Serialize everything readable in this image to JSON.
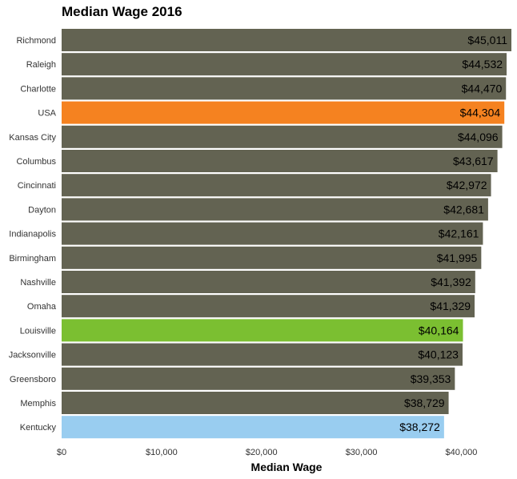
{
  "chart_data": {
    "type": "bar",
    "orientation": "horizontal",
    "title": "Median Wage 2016",
    "xlabel": "Median Wage",
    "ylabel": "",
    "xlim": [
      0,
      45011
    ],
    "xticks": [
      0,
      10000,
      20000,
      30000,
      40000
    ],
    "xtick_labels": [
      "$0",
      "$10,000",
      "$20,000",
      "$30,000",
      "$40,000"
    ],
    "grid": false,
    "legend": "none",
    "categories": [
      "Richmond",
      "Raleigh",
      "Charlotte",
      "USA",
      "Kansas City",
      "Columbus",
      "Cincinnati",
      "Dayton",
      "Indianapolis",
      "Birmingham",
      "Nashville",
      "Omaha",
      "Louisville",
      "Jacksonville",
      "Greensboro",
      "Memphis",
      "Kentucky"
    ],
    "values": [
      45011,
      44532,
      44470,
      44304,
      44096,
      43617,
      42972,
      42681,
      42161,
      41995,
      41392,
      41329,
      40164,
      40123,
      39353,
      38729,
      38272
    ],
    "data_labels": [
      "$45,011",
      "$44,532",
      "$44,470",
      "$44,304",
      "$44,096",
      "$43,617",
      "$42,972",
      "$42,681",
      "$42,161",
      "$41,995",
      "$41,392",
      "$41,329",
      "$40,164",
      "$40,123",
      "$39,353",
      "$38,729",
      "$38,272"
    ],
    "colors": [
      "#636352",
      "#636352",
      "#636352",
      "#f58220",
      "#636352",
      "#636352",
      "#636352",
      "#636352",
      "#636352",
      "#636352",
      "#636352",
      "#636352",
      "#7bbf31",
      "#636352",
      "#636352",
      "#636352",
      "#99cdf0"
    ]
  }
}
